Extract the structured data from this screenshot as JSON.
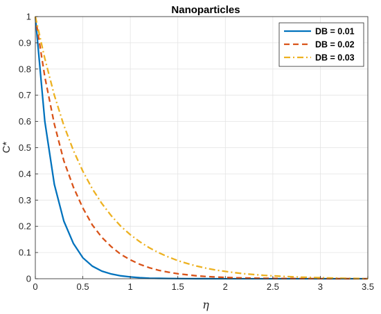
{
  "chart_data": {
    "type": "line",
    "title": "Nanoparticles",
    "xlabel": "η",
    "ylabel": "C*",
    "xlim": [
      0,
      3.5
    ],
    "ylim": [
      0,
      1
    ],
    "xticks": [
      "0",
      "0.5",
      "1",
      "1.5",
      "2",
      "2.5",
      "3",
      "3.5"
    ],
    "yticks": [
      "0",
      "0.1",
      "0.2",
      "0.3",
      "0.4",
      "0.5",
      "0.6",
      "0.7",
      "0.8",
      "0.9",
      "1"
    ],
    "grid": true,
    "legend_position": "top-right",
    "x": [
      0,
      0.1,
      0.2,
      0.3,
      0.4,
      0.5,
      0.6,
      0.7,
      0.8,
      0.9,
      1.0,
      1.1,
      1.2,
      1.3,
      1.4,
      1.5,
      1.6,
      1.7,
      1.8,
      1.9,
      2.0,
      2.1,
      2.2,
      2.3,
      2.4,
      2.5,
      2.6,
      2.7,
      2.8,
      2.9,
      3.0,
      3.1,
      3.2,
      3.3,
      3.4,
      3.5
    ],
    "series": [
      {
        "name": "DB = 0.01",
        "color": "#0072BD",
        "style": "solid",
        "values": [
          1.0,
          0.6,
          0.36,
          0.22,
          0.135,
          0.08,
          0.048,
          0.029,
          0.018,
          0.011,
          0.007,
          0.004,
          0.002,
          0.0015,
          0.001,
          0.0006,
          0.0003,
          0.0002,
          0.0001,
          0.0,
          0.0,
          0.0,
          0.0,
          0.0,
          0.0,
          0.0,
          0.0,
          0.0,
          0.0,
          0.0,
          0.0,
          0.0,
          0.0,
          0.0,
          0.0,
          0.0
        ]
      },
      {
        "name": "DB = 0.02",
        "color": "#D95319",
        "style": "dashed",
        "values": [
          1.0,
          0.77,
          0.59,
          0.45,
          0.35,
          0.27,
          0.205,
          0.158,
          0.122,
          0.093,
          0.072,
          0.055,
          0.042,
          0.032,
          0.025,
          0.019,
          0.015,
          0.011,
          0.0085,
          0.0065,
          0.005,
          0.0038,
          0.003,
          0.0023,
          0.0017,
          0.0013,
          0.001,
          0.0008,
          0.0006,
          0.0004,
          0.0003,
          0.0002,
          0.0001,
          0.0001,
          0.0,
          0.0
        ]
      },
      {
        "name": "DB = 0.03",
        "color": "#EDB120",
        "style": "dashdot",
        "values": [
          1.0,
          0.84,
          0.7,
          0.585,
          0.49,
          0.41,
          0.343,
          0.287,
          0.24,
          0.2,
          0.168,
          0.141,
          0.118,
          0.099,
          0.083,
          0.069,
          0.058,
          0.048,
          0.04,
          0.033,
          0.028,
          0.023,
          0.019,
          0.016,
          0.013,
          0.011,
          0.009,
          0.0075,
          0.006,
          0.005,
          0.004,
          0.003,
          0.002,
          0.0015,
          0.0008,
          0.0002
        ]
      }
    ]
  }
}
